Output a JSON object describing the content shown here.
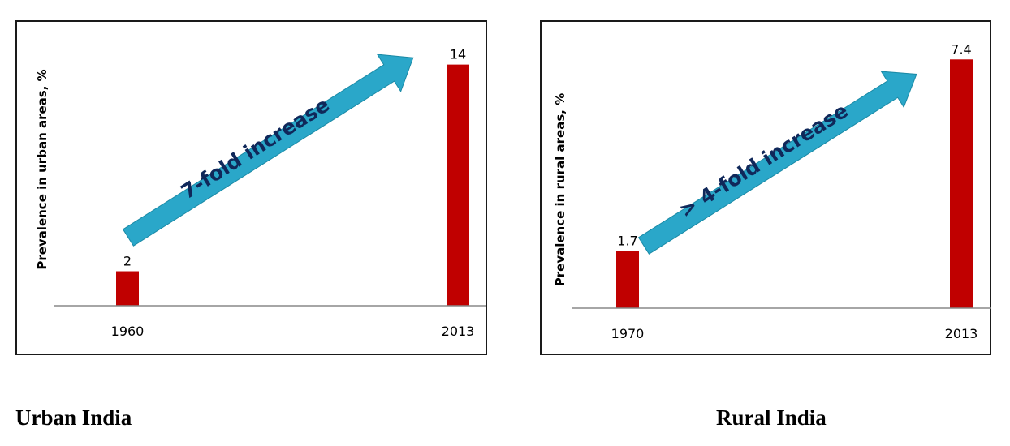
{
  "colors": {
    "bar": "#c00000",
    "arrow": "#2aa7c9",
    "arrow_text": "#10285a",
    "axis": "#888888"
  },
  "captions": {
    "urban": "Urban India",
    "rural": "Rural India"
  },
  "chart_data": [
    {
      "type": "bar",
      "ylabel": "Prevalence in urban areas, %",
      "categories": [
        "1960",
        "2013"
      ],
      "values": [
        2,
        14
      ],
      "data_labels": [
        "2",
        "14"
      ],
      "annotation": "7-fold increase",
      "ylim": [
        0,
        14.5
      ],
      "grid": false
    },
    {
      "type": "bar",
      "ylabel": "Prevalence in rural areas, %",
      "categories": [
        "1970",
        "2013"
      ],
      "values": [
        1.7,
        7.4
      ],
      "data_labels": [
        "1.7",
        "7.4"
      ],
      "annotation": "> 4-fold increase",
      "ylim": [
        0,
        7.6
      ],
      "grid": false
    }
  ]
}
